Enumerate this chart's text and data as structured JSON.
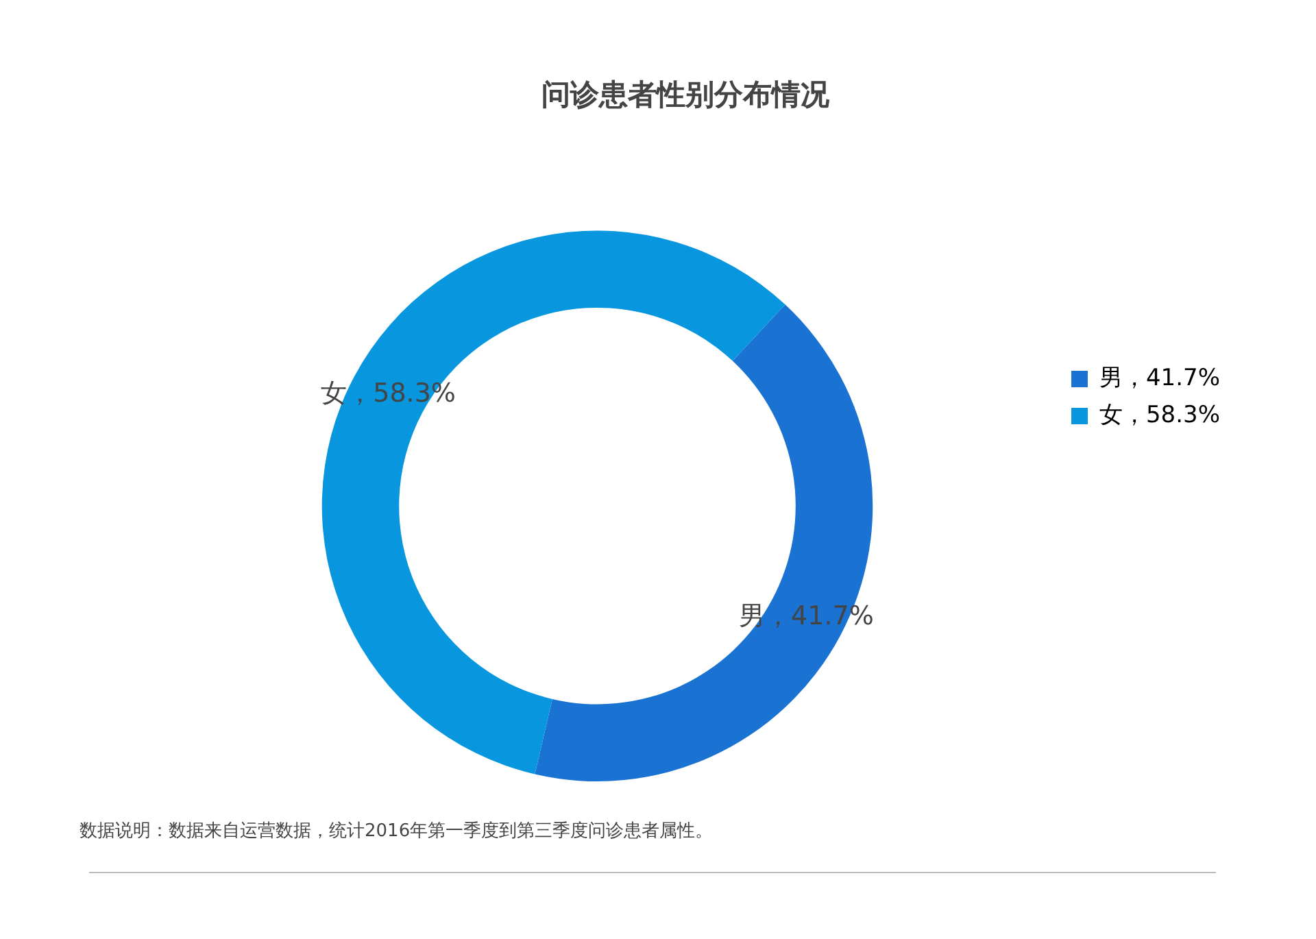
{
  "chart_data": {
    "type": "donut",
    "title": "问诊患者性别分布情况",
    "categories": [
      "男",
      "女"
    ],
    "values": [
      41.7,
      58.3
    ],
    "colors": [
      "#1a72d2",
      "#0897df"
    ],
    "value_labels": [
      "，41.7%",
      "，58.3%"
    ],
    "legend": "right",
    "annotations": [
      "数据说明：数据来自运营数据，统计2016年第一季度到第三季度问诊患者属性。"
    ]
  }
}
